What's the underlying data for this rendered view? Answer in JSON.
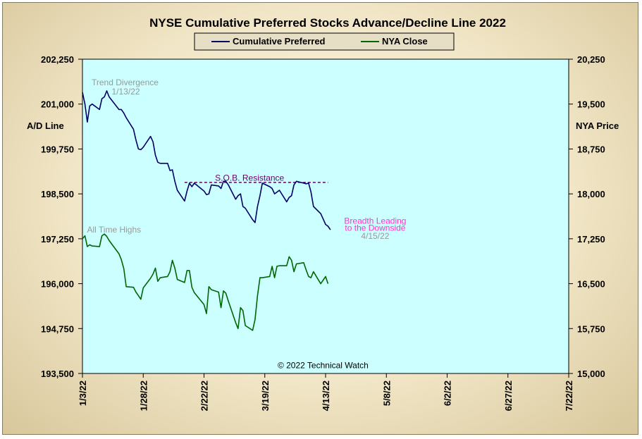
{
  "chart_data": {
    "type": "line",
    "title": "NYSE Cumulative  Preferred Stocks Advance/Decline  Line 2022",
    "ylabel_left": "A/D Line",
    "ylabel_right": "NYA Price",
    "ylim_left": [
      193500,
      202250
    ],
    "ylim_right": [
      15000,
      20250
    ],
    "yticks_left": [
      "202,250",
      "201,000",
      "199,750",
      "198,500",
      "197,250",
      "196,000",
      "194,750",
      "193,500"
    ],
    "yticks_right": [
      "20,250",
      "19,500",
      "18,750",
      "18,000",
      "17,250",
      "16,500",
      "15,750",
      "15,000"
    ],
    "x_range": [
      "2022-01-03",
      "2022-07-22"
    ],
    "xticks": [
      {
        "label": "1/3/22",
        "date": "2022-01-03"
      },
      {
        "label": "1/28/22",
        "date": "2022-01-28"
      },
      {
        "label": "2/22/22",
        "date": "2022-02-22"
      },
      {
        "label": "3/19/22",
        "date": "2022-03-19"
      },
      {
        "label": "4/13/22",
        "date": "2022-04-13"
      },
      {
        "label": "5/8/22",
        "date": "2022-05-08"
      },
      {
        "label": "6/2/22",
        "date": "2022-06-02"
      },
      {
        "label": "6/27/22",
        "date": "2022-06-27"
      },
      {
        "label": "7/22/22",
        "date": "2022-07-22"
      }
    ],
    "legend_placement": "top-center",
    "plot_background": "#ccffff",
    "series": [
      {
        "name": "Cumulative Preferred",
        "axis": "left",
        "color": "#000066",
        "points": [
          [
            "2022-01-03",
            201330
          ],
          [
            "2022-01-04",
            201000
          ],
          [
            "2022-01-05",
            200500
          ],
          [
            "2022-01-06",
            200950
          ],
          [
            "2022-01-07",
            201000
          ],
          [
            "2022-01-10",
            200850
          ],
          [
            "2022-01-11",
            201150
          ],
          [
            "2022-01-12",
            201200
          ],
          [
            "2022-01-13",
            201370
          ],
          [
            "2022-01-14",
            201200
          ],
          [
            "2022-01-18",
            200850
          ],
          [
            "2022-01-19",
            200850
          ],
          [
            "2022-01-20",
            200750
          ],
          [
            "2022-01-21",
            200620
          ],
          [
            "2022-01-24",
            200300
          ],
          [
            "2022-01-25",
            200000
          ],
          [
            "2022-01-26",
            199750
          ],
          [
            "2022-01-27",
            199730
          ],
          [
            "2022-01-28",
            199800
          ],
          [
            "2022-01-31",
            200100
          ],
          [
            "2022-02-01",
            199950
          ],
          [
            "2022-02-02",
            199580
          ],
          [
            "2022-02-03",
            199380
          ],
          [
            "2022-02-04",
            199350
          ],
          [
            "2022-02-07",
            199350
          ],
          [
            "2022-02-08",
            199150
          ],
          [
            "2022-02-09",
            199170
          ],
          [
            "2022-02-10",
            198850
          ],
          [
            "2022-02-11",
            198600
          ],
          [
            "2022-02-14",
            198300
          ],
          [
            "2022-02-15",
            198580
          ],
          [
            "2022-02-16",
            198800
          ],
          [
            "2022-02-17",
            198700
          ],
          [
            "2022-02-18",
            198800
          ],
          [
            "2022-02-22",
            198580
          ],
          [
            "2022-02-23",
            198480
          ],
          [
            "2022-02-24",
            198500
          ],
          [
            "2022-02-25",
            198750
          ],
          [
            "2022-02-28",
            198720
          ],
          [
            "2022-03-01",
            198650
          ],
          [
            "2022-03-02",
            198850
          ],
          [
            "2022-03-03",
            198850
          ],
          [
            "2022-03-04",
            198750
          ],
          [
            "2022-03-07",
            198350
          ],
          [
            "2022-03-08",
            198450
          ],
          [
            "2022-03-09",
            198500
          ],
          [
            "2022-03-10",
            198150
          ],
          [
            "2022-03-11",
            198100
          ],
          [
            "2022-03-14",
            197780
          ],
          [
            "2022-03-15",
            197700
          ],
          [
            "2022-03-16",
            198150
          ],
          [
            "2022-03-17",
            198450
          ],
          [
            "2022-03-18",
            198800
          ],
          [
            "2022-03-21",
            198700
          ],
          [
            "2022-03-22",
            198650
          ],
          [
            "2022-03-23",
            198500
          ],
          [
            "2022-03-24",
            198550
          ],
          [
            "2022-03-25",
            198600
          ],
          [
            "2022-03-28",
            198280
          ],
          [
            "2022-03-29",
            198400
          ],
          [
            "2022-03-30",
            198450
          ],
          [
            "2022-03-31",
            198750
          ],
          [
            "2022-04-01",
            198850
          ],
          [
            "2022-04-04",
            198800
          ],
          [
            "2022-04-05",
            198780
          ],
          [
            "2022-04-06",
            198800
          ],
          [
            "2022-04-07",
            198550
          ],
          [
            "2022-04-08",
            198150
          ],
          [
            "2022-04-11",
            197950
          ],
          [
            "2022-04-12",
            197800
          ],
          [
            "2022-04-13",
            197650
          ],
          [
            "2022-04-14",
            197600
          ],
          [
            "2022-04-15",
            197500
          ]
        ]
      },
      {
        "name": "NYA Close",
        "axis": "right",
        "color": "#006600",
        "points": [
          [
            "2022-01-03",
            17250
          ],
          [
            "2022-01-04",
            17300
          ],
          [
            "2022-01-05",
            17120
          ],
          [
            "2022-01-06",
            17150
          ],
          [
            "2022-01-07",
            17130
          ],
          [
            "2022-01-10",
            17120
          ],
          [
            "2022-01-11",
            17300
          ],
          [
            "2022-01-12",
            17330
          ],
          [
            "2022-01-13",
            17290
          ],
          [
            "2022-01-14",
            17220
          ],
          [
            "2022-01-18",
            17000
          ],
          [
            "2022-01-19",
            16900
          ],
          [
            "2022-01-20",
            16750
          ],
          [
            "2022-01-21",
            16450
          ],
          [
            "2022-01-24",
            16440
          ],
          [
            "2022-01-25",
            16360
          ],
          [
            "2022-01-26",
            16300
          ],
          [
            "2022-01-27",
            16240
          ],
          [
            "2022-01-28",
            16430
          ],
          [
            "2022-01-31",
            16590
          ],
          [
            "2022-02-01",
            16660
          ],
          [
            "2022-02-02",
            16760
          ],
          [
            "2022-02-03",
            16540
          ],
          [
            "2022-02-04",
            16600
          ],
          [
            "2022-02-07",
            16620
          ],
          [
            "2022-02-08",
            16700
          ],
          [
            "2022-02-09",
            16890
          ],
          [
            "2022-02-10",
            16760
          ],
          [
            "2022-02-11",
            16570
          ],
          [
            "2022-02-14",
            16520
          ],
          [
            "2022-02-15",
            16720
          ],
          [
            "2022-02-16",
            16720
          ],
          [
            "2022-02-17",
            16440
          ],
          [
            "2022-02-18",
            16350
          ],
          [
            "2022-02-22",
            16150
          ],
          [
            "2022-02-23",
            16000
          ],
          [
            "2022-02-24",
            16450
          ],
          [
            "2022-02-25",
            16400
          ],
          [
            "2022-02-28",
            16360
          ],
          [
            "2022-03-01",
            16100
          ],
          [
            "2022-03-02",
            16380
          ],
          [
            "2022-03-03",
            16340
          ],
          [
            "2022-03-04",
            16210
          ],
          [
            "2022-03-07",
            15850
          ],
          [
            "2022-03-08",
            15750
          ],
          [
            "2022-03-09",
            16100
          ],
          [
            "2022-03-10",
            16050
          ],
          [
            "2022-03-11",
            15800
          ],
          [
            "2022-03-14",
            15720
          ],
          [
            "2022-03-15",
            15900
          ],
          [
            "2022-03-16",
            16300
          ],
          [
            "2022-03-17",
            16600
          ],
          [
            "2022-03-18",
            16600
          ],
          [
            "2022-03-21",
            16620
          ],
          [
            "2022-03-22",
            16790
          ],
          [
            "2022-03-23",
            16600
          ],
          [
            "2022-03-24",
            16790
          ],
          [
            "2022-03-25",
            16800
          ],
          [
            "2022-03-28",
            16800
          ],
          [
            "2022-03-29",
            16950
          ],
          [
            "2022-03-30",
            16890
          ],
          [
            "2022-03-31",
            16700
          ],
          [
            "2022-04-01",
            16830
          ],
          [
            "2022-04-04",
            16850
          ],
          [
            "2022-04-05",
            16730
          ],
          [
            "2022-04-06",
            16620
          ],
          [
            "2022-04-07",
            16600
          ],
          [
            "2022-04-08",
            16700
          ],
          [
            "2022-04-11",
            16500
          ],
          [
            "2022-04-12",
            16560
          ],
          [
            "2022-04-13",
            16620
          ],
          [
            "2022-04-14",
            16500
          ]
        ]
      }
    ],
    "annotations": [
      {
        "text": "Trend  Divergence",
        "date": "2022-01-03",
        "y": 201600,
        "color": "#999999"
      },
      {
        "text": "1/13/22",
        "date": "2022-01-13",
        "y": 201350,
        "color": "#999999"
      },
      {
        "text": "S.O.B. Resistance",
        "date": "2022-02-28",
        "y": 198940,
        "color": "#660066"
      },
      {
        "text": "All Time Highs",
        "date": "2022-01-04",
        "y": 197500,
        "color": "#999999"
      },
      {
        "text": "Breadth Leading",
        "date": "2022-05-04",
        "y": 197750,
        "color": "#ff33cc"
      },
      {
        "text": "to the Downside",
        "date": "2022-05-04",
        "y": 197550,
        "color": "#ff33cc"
      },
      {
        "text": "4/15/22",
        "date": "2022-05-04",
        "y": 197330,
        "color": "#999999"
      },
      {
        "text": "© 2022 Technical Watch",
        "date": "2022-04-05",
        "y": 193730,
        "color": "#000000"
      }
    ],
    "resistance_line": {
      "from": "2022-02-14",
      "to": "2022-04-14",
      "y": 198820,
      "color": "#660066"
    }
  }
}
